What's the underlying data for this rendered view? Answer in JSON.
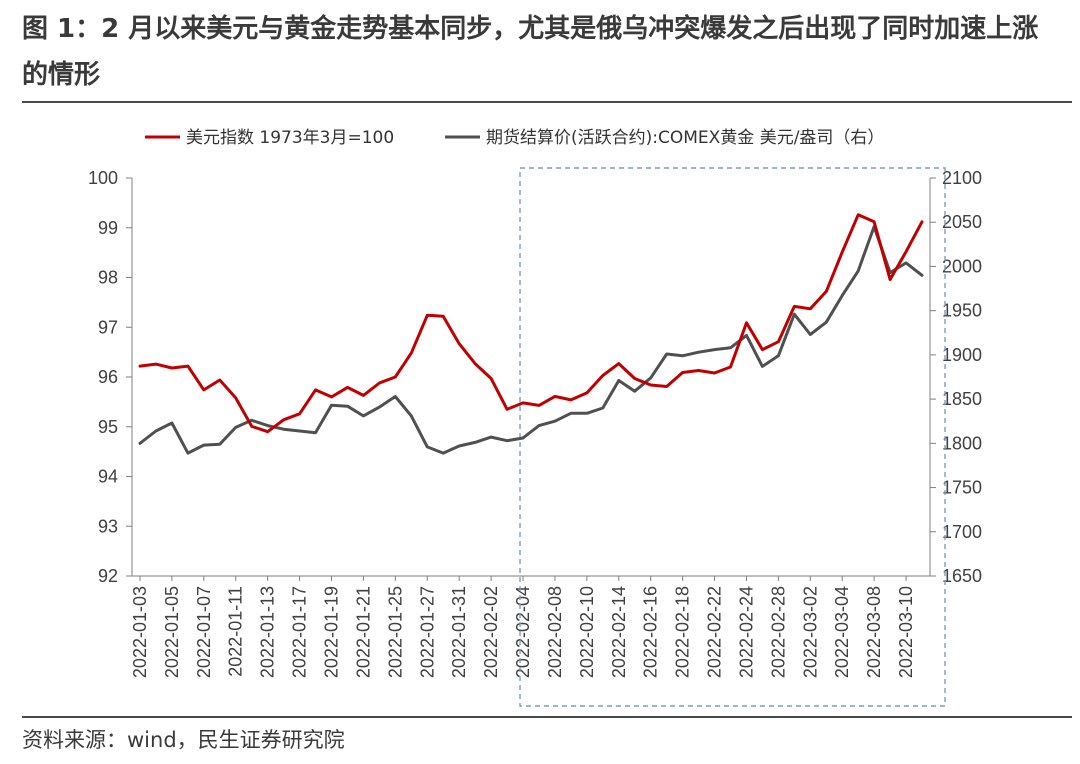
{
  "header": {
    "title": "图 1：2 月以来美元与黄金走势基本同步，尤其是俄乌冲突爆发之后出现了同时加速上涨的情形"
  },
  "footer": {
    "source": "资料来源：wind，民生证券研究院"
  },
  "colors": {
    "usd": "#c00000",
    "gold": "#505050",
    "highlight": "#7a9cc6"
  },
  "chart_data": {
    "type": "line",
    "x_ticks": [
      "2022-01-03",
      "2022-01-05",
      "2022-01-07",
      "2022-01-11",
      "2022-01-13",
      "2022-01-17",
      "2022-01-19",
      "2022-01-21",
      "2022-01-25",
      "2022-01-27",
      "2022-01-31",
      "2022-02-02",
      "2022-02-04",
      "2022-02-08",
      "2022-02-10",
      "2022-02-14",
      "2022-02-16",
      "2022-02-18",
      "2022-02-22",
      "2022-02-24",
      "2022-02-28",
      "2022-03-02",
      "2022-03-04",
      "2022-03-08",
      "2022-03-10"
    ],
    "y_left": {
      "ylim": [
        92,
        100
      ],
      "ticks": [
        "92",
        "93",
        "94",
        "95",
        "96",
        "97",
        "98",
        "99",
        "100"
      ]
    },
    "y_right": {
      "ylim": [
        1650,
        2100
      ],
      "ticks": [
        "1650",
        "1700",
        "1750",
        "1800",
        "1850",
        "1900",
        "1950",
        "2000",
        "2050",
        "2100"
      ]
    },
    "highlight_range": [
      "2022-02-04",
      "2022-03-11"
    ],
    "legend_position": "top",
    "series": [
      {
        "name": "美元指数 1973年3月=100",
        "axis": "left",
        "values": [
          96.22,
          96.26,
          96.18,
          96.22,
          95.74,
          95.94,
          95.58,
          95.01,
          94.9,
          95.14,
          95.26,
          95.74,
          95.6,
          95.79,
          95.63,
          95.88,
          96.0,
          96.48,
          97.24,
          97.22,
          96.67,
          96.27,
          95.97,
          95.35,
          95.48,
          95.43,
          95.61,
          95.54,
          95.68,
          96.03,
          96.27,
          95.97,
          95.84,
          95.81,
          96.09,
          96.13,
          96.08,
          96.2,
          97.09,
          96.55,
          96.71,
          97.42,
          97.37,
          97.72,
          98.51,
          99.26,
          99.12,
          97.96,
          98.52,
          99.12
        ]
      },
      {
        "name": "期货结算价(活跃合约):COMEX黄金 美元/盎司（右）",
        "axis": "right",
        "values": [
          1800,
          1814,
          1823,
          1789,
          1798,
          1799,
          1818,
          1826,
          1820,
          1816,
          1814,
          1812,
          1843,
          1842,
          1831,
          1841,
          1853,
          1831,
          1796,
          1789,
          1797,
          1801,
          1807,
          1803,
          1806,
          1820,
          1825,
          1834,
          1834,
          1840,
          1871,
          1859,
          1874,
          1901,
          1899,
          1903,
          1906,
          1908,
          1922,
          1887,
          1899,
          1946,
          1923,
          1937,
          1967,
          1995,
          2045,
          1993,
          2004,
          1990
        ]
      }
    ]
  }
}
